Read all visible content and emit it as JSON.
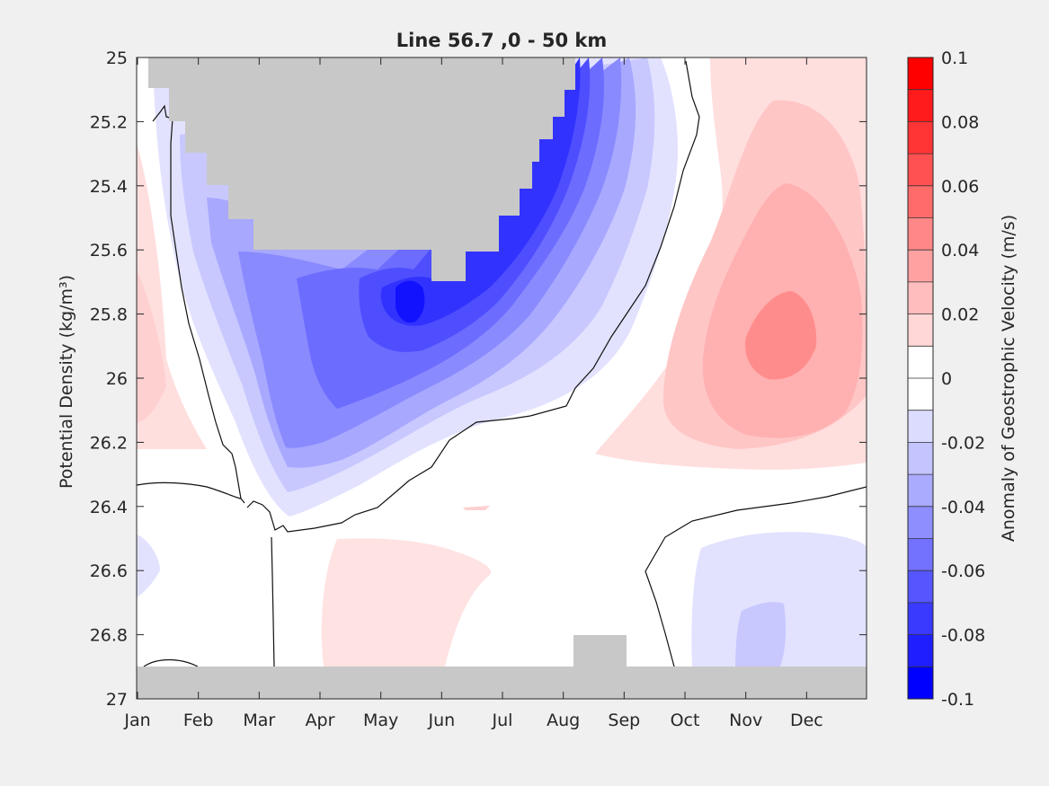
{
  "chart_data": {
    "type": "heatmap",
    "title": "Line 56.7 ,0 - 50 km",
    "xlabel": "",
    "ylabel": "Potential Density (kg/m³)",
    "x_categories": [
      "Jan",
      "Feb",
      "Mar",
      "Apr",
      "May",
      "Jun",
      "Jul",
      "Aug",
      "Sep",
      "Oct",
      "Nov",
      "Dec"
    ],
    "y_ticks": [
      "25",
      "25.2",
      "25.4",
      "25.6",
      "25.8",
      "26",
      "26.2",
      "26.4",
      "26.6",
      "26.8",
      "27"
    ],
    "ylim": [
      27,
      25
    ],
    "y_reversed": true,
    "colorbar": {
      "label": "Anomaly of Geostrophic Velocity (m/s)",
      "range": [
        -0.1,
        0.1
      ],
      "step": 0.01,
      "ticks": [
        "0.1",
        "0.08",
        "0.06",
        "0.04",
        "0.02",
        "0",
        "-0.02",
        "-0.04",
        "-0.06",
        "-0.08",
        "-0.1"
      ],
      "colors_top_to_bottom": [
        "#ff0000",
        "#ff1b1b",
        "#ff3535",
        "#ff5151",
        "#ff6b6b",
        "#ff8787",
        "#ffa1a1",
        "#ffbdbd",
        "#ffd7d7",
        "#ffffff",
        "#ffffff",
        "#dcdcff",
        "#c4c4ff",
        "#aaaaff",
        "#8e8eff",
        "#7272ff",
        "#5656ff",
        "#3a3aff",
        "#1e1eff",
        "#0000ff"
      ]
    },
    "features": [
      {
        "kind": "negative-core",
        "month_center": 5.2,
        "density_center": 25.8,
        "min_value": -0.1
      },
      {
        "kind": "positive-core",
        "month_center": 11.0,
        "density_center": 25.9,
        "max_value": 0.05
      },
      {
        "kind": "negative-weak",
        "month_center": 11.0,
        "density_center": 26.8,
        "min_value": -0.03
      },
      {
        "kind": "positive-weak",
        "month_center": 5.3,
        "density_center": 26.65,
        "max_value": 0.01
      },
      {
        "kind": "positive-weak",
        "month_center": 0.5,
        "density_center": 25.8,
        "max_value": 0.02
      }
    ],
    "no_data_color": "#c8c8c8"
  }
}
